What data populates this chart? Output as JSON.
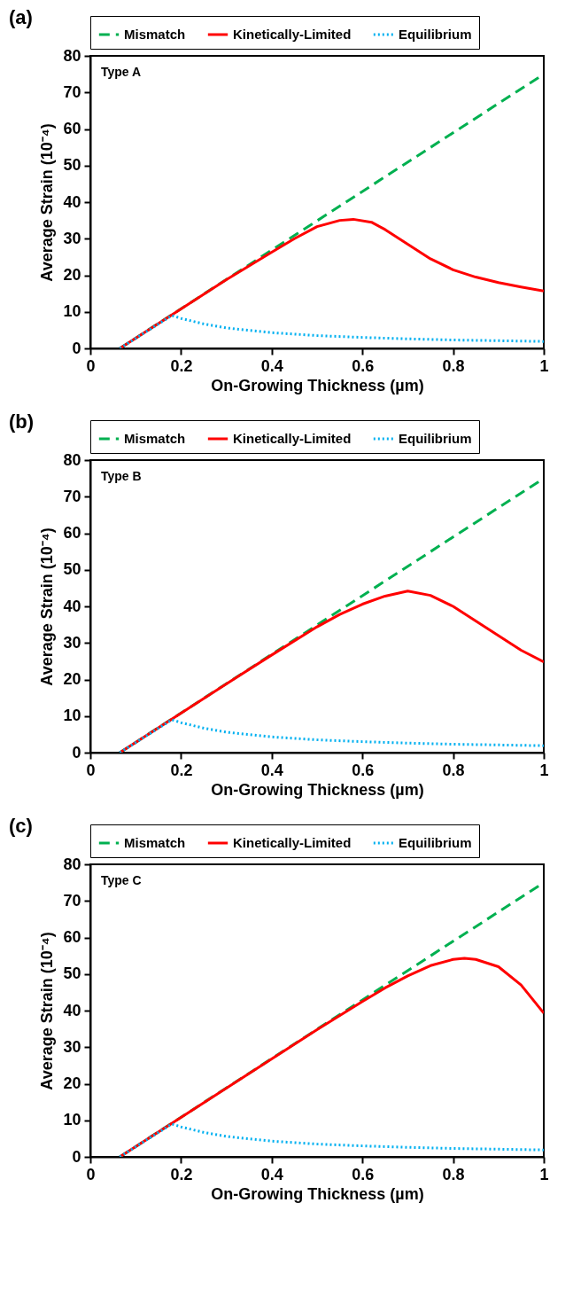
{
  "chart_data": [
    {
      "type": "line",
      "title": "(a)",
      "xlabel": "On-Growing Thickness (µm)",
      "ylabel": "Average Strain (10⁻⁴)",
      "annotations": [
        "Type A"
      ],
      "xlim": [
        0,
        1
      ],
      "xticks": [
        0,
        0.2,
        0.4,
        0.6,
        0.8,
        1
      ],
      "ylim": [
        0,
        80
      ],
      "yticks": [
        0,
        10,
        20,
        30,
        40,
        50,
        60,
        70,
        80
      ],
      "grid": false,
      "legend": "top",
      "marker": "none",
      "series": [
        {
          "name": "Mismatch",
          "color": "#00b050",
          "line_style": "dashed",
          "x": [
            0.065,
            1
          ],
          "values": [
            0,
            75
          ]
        },
        {
          "name": "Kinetically-Limited",
          "color": "#ff0000",
          "line_style": "solid",
          "x": [
            0.065,
            0.2,
            0.3,
            0.4,
            0.45,
            0.5,
            0.55,
            0.58,
            0.62,
            0.65,
            0.7,
            0.75,
            0.8,
            0.85,
            0.9,
            0.95,
            1
          ],
          "values": [
            0,
            10.8,
            18.8,
            26.3,
            30,
            33.3,
            35,
            35.3,
            34.5,
            32.5,
            28.5,
            24.5,
            21.5,
            19.5,
            18,
            16.8,
            15.7
          ]
        },
        {
          "name": "Equilibrium",
          "color": "#00b0f0",
          "line_style": "dotted",
          "x": [
            0.065,
            0.18,
            0.2,
            0.25,
            0.3,
            0.4,
            0.5,
            0.6,
            0.7,
            0.8,
            0.9,
            1
          ],
          "values": [
            0,
            9,
            8.2,
            6.7,
            5.6,
            4.3,
            3.5,
            3,
            2.6,
            2.3,
            2.1,
            1.9
          ]
        }
      ]
    },
    {
      "type": "line",
      "title": "(b)",
      "xlabel": "On-Growing Thickness (µm)",
      "ylabel": "Average Strain (10⁻⁴)",
      "annotations": [
        "Type B"
      ],
      "xlim": [
        0,
        1
      ],
      "xticks": [
        0,
        0.2,
        0.4,
        0.6,
        0.8,
        1
      ],
      "ylim": [
        0,
        80
      ],
      "yticks": [
        0,
        10,
        20,
        30,
        40,
        50,
        60,
        70,
        80
      ],
      "grid": false,
      "legend": "top",
      "marker": "none",
      "series": [
        {
          "name": "Mismatch",
          "color": "#00b050",
          "line_style": "dashed",
          "x": [
            0.065,
            1
          ],
          "values": [
            0,
            75
          ]
        },
        {
          "name": "Kinetically-Limited",
          "color": "#ff0000",
          "line_style": "solid",
          "x": [
            0.065,
            0.2,
            0.3,
            0.4,
            0.5,
            0.55,
            0.6,
            0.65,
            0.7,
            0.75,
            0.8,
            0.85,
            0.9,
            0.95,
            1
          ],
          "values": [
            0,
            10.8,
            18.8,
            26.7,
            34.4,
            37.8,
            40.6,
            42.8,
            44.2,
            43,
            40,
            36,
            32,
            28,
            24.8
          ]
        },
        {
          "name": "Equilibrium",
          "color": "#00b0f0",
          "line_style": "dotted",
          "x": [
            0.065,
            0.18,
            0.2,
            0.25,
            0.3,
            0.4,
            0.5,
            0.6,
            0.7,
            0.8,
            0.9,
            1
          ],
          "values": [
            0,
            9,
            8.2,
            6.7,
            5.6,
            4.3,
            3.5,
            3,
            2.6,
            2.3,
            2.1,
            1.9
          ]
        }
      ]
    },
    {
      "type": "line",
      "title": "(c)",
      "xlabel": "On-Growing Thickness (µm)",
      "ylabel": "Average Strain (10⁻⁴)",
      "annotations": [
        "Type C"
      ],
      "xlim": [
        0,
        1
      ],
      "xticks": [
        0,
        0.2,
        0.4,
        0.6,
        0.8,
        1
      ],
      "ylim": [
        0,
        80
      ],
      "yticks": [
        0,
        10,
        20,
        30,
        40,
        50,
        60,
        70,
        80
      ],
      "grid": false,
      "legend": "top",
      "marker": "none",
      "series": [
        {
          "name": "Mismatch",
          "color": "#00b050",
          "line_style": "dashed",
          "x": [
            0.065,
            1
          ],
          "values": [
            0,
            75
          ]
        },
        {
          "name": "Kinetically-Limited",
          "color": "#ff0000",
          "line_style": "solid",
          "x": [
            0.065,
            0.2,
            0.3,
            0.4,
            0.5,
            0.6,
            0.65,
            0.7,
            0.75,
            0.8,
            0.825,
            0.85,
            0.9,
            0.95,
            1
          ],
          "values": [
            0,
            10.8,
            18.8,
            26.8,
            34.8,
            42.5,
            46.2,
            49.5,
            52.3,
            54,
            54.3,
            54,
            52,
            47,
            39.3
          ]
        },
        {
          "name": "Equilibrium",
          "color": "#00b0f0",
          "line_style": "dotted",
          "x": [
            0.065,
            0.18,
            0.2,
            0.25,
            0.3,
            0.4,
            0.5,
            0.6,
            0.7,
            0.8,
            0.9,
            1
          ],
          "values": [
            0,
            9,
            8.2,
            6.7,
            5.6,
            4.3,
            3.5,
            3,
            2.6,
            2.3,
            2.1,
            1.9
          ]
        }
      ]
    }
  ]
}
